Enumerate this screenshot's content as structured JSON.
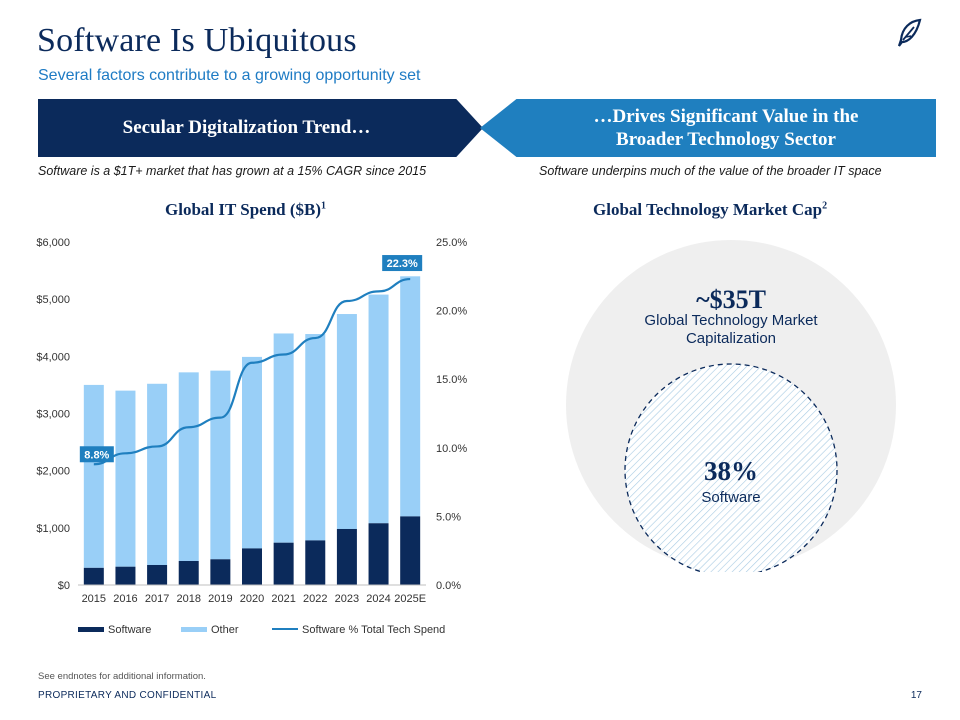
{
  "header": {
    "title": "Software Is Ubiquitous",
    "subtitle": "Several factors contribute to a growing opportunity set",
    "logo_icon": "quill-icon"
  },
  "banners": {
    "left": "Secular Digitalization Trend…",
    "right": "…Drives Significant Value in the Broader Technology Sector"
  },
  "captions": {
    "left": "Software is a $1T+ market that has grown at a 15% CAGR since 2015",
    "right": "Software underpins much of the value of the broader IT space"
  },
  "chart_titles": {
    "left": "Global IT Spend ($B)",
    "left_note": "1",
    "right": "Global Technology Market Cap",
    "right_note": "2"
  },
  "chart_data": [
    {
      "type": "bar",
      "stacked": true,
      "title": "Global IT Spend ($B)",
      "categories": [
        "2015",
        "2016",
        "2017",
        "2018",
        "2019",
        "2020",
        "2021",
        "2022",
        "2023",
        "2024",
        "2025E"
      ],
      "series": [
        {
          "name": "Software",
          "color": "#0b2a5b",
          "values": [
            300,
            320,
            350,
            420,
            450,
            640,
            740,
            780,
            980,
            1080,
            1200
          ]
        },
        {
          "name": "Other",
          "color": "#99cff7",
          "values": [
            3200,
            3080,
            3170,
            3300,
            3300,
            3350,
            3660,
            3610,
            3760,
            4000,
            4200
          ]
        },
        {
          "name": "Software % Total Tech Spend",
          "type": "line",
          "axis": "right",
          "color": "#1f7fbf",
          "values": [
            8.8,
            9.6,
            10.1,
            11.5,
            12.2,
            16.2,
            16.8,
            18.0,
            20.7,
            21.4,
            22.3
          ]
        }
      ],
      "y_left": {
        "ticks": [
          "$0",
          "$1,000",
          "$2,000",
          "$3,000",
          "$4,000",
          "$5,000",
          "$6,000"
        ],
        "range": [
          0,
          6000
        ]
      },
      "y_right": {
        "ticks": [
          "0.0%",
          "5.0%",
          "10.0%",
          "15.0%",
          "20.0%",
          "25.0%"
        ],
        "range": [
          0,
          25
        ]
      },
      "data_labels": {
        "first": "8.8%",
        "last": "22.3%"
      },
      "legend": [
        "Software",
        "Other",
        "Software % Total Tech Spend"
      ],
      "legend_position": "bottom",
      "grid": false
    },
    {
      "type": "pie",
      "title": "Global Technology Market Cap",
      "total_label": "~$35T",
      "total_caption": "Global Technology Market Capitalization",
      "software_share": 38,
      "software_share_label": "38%",
      "software_caption": "Software"
    }
  ],
  "footer": {
    "note": "See endnotes for additional information.",
    "confidential": "PROPRIETARY AND CONFIDENTIAL",
    "page_number": "17"
  }
}
